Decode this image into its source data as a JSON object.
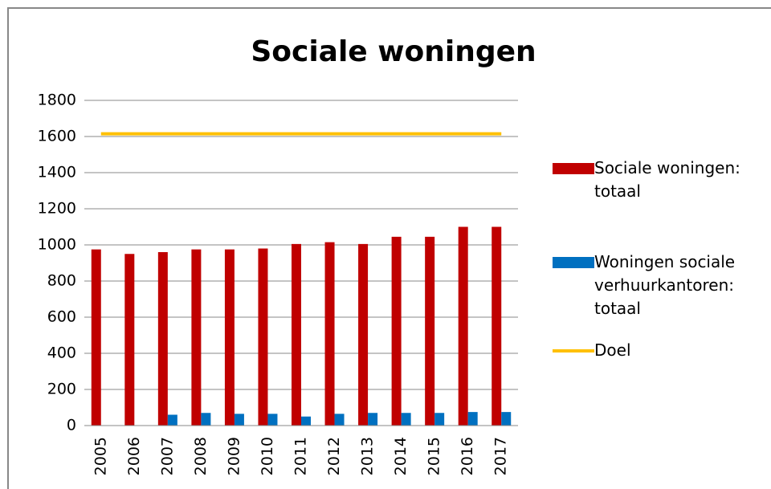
{
  "chart_data": {
    "type": "bar",
    "title": "Sociale woningen",
    "categories": [
      "2005",
      "2006",
      "2007",
      "2008",
      "2009",
      "2010",
      "2011",
      "2012",
      "2013",
      "2014",
      "2015",
      "2016",
      "2017"
    ],
    "series": [
      {
        "name": "Sociale woningen: totaal",
        "color": "#c00000",
        "values": [
          975,
          950,
          960,
          975,
          975,
          980,
          1005,
          1015,
          1005,
          1045,
          1045,
          1100,
          1100
        ]
      },
      {
        "name": "Woningen sociale verhuurkantoren: totaal",
        "color": "#0070c0",
        "values": [
          null,
          null,
          60,
          70,
          65,
          65,
          50,
          65,
          70,
          70,
          70,
          75,
          75
        ]
      },
      {
        "name": "Doel",
        "type": "line",
        "color": "#ffc000",
        "values": [
          1615,
          1615,
          1615,
          1615,
          1615,
          1615,
          1615,
          1615,
          1615,
          1615,
          1615,
          1615,
          1615
        ]
      }
    ],
    "ylim": [
      0,
      1800
    ],
    "yticks": [
      0,
      200,
      400,
      600,
      800,
      1000,
      1200,
      1400,
      1600,
      1800
    ],
    "grid": true,
    "legend": "right"
  }
}
